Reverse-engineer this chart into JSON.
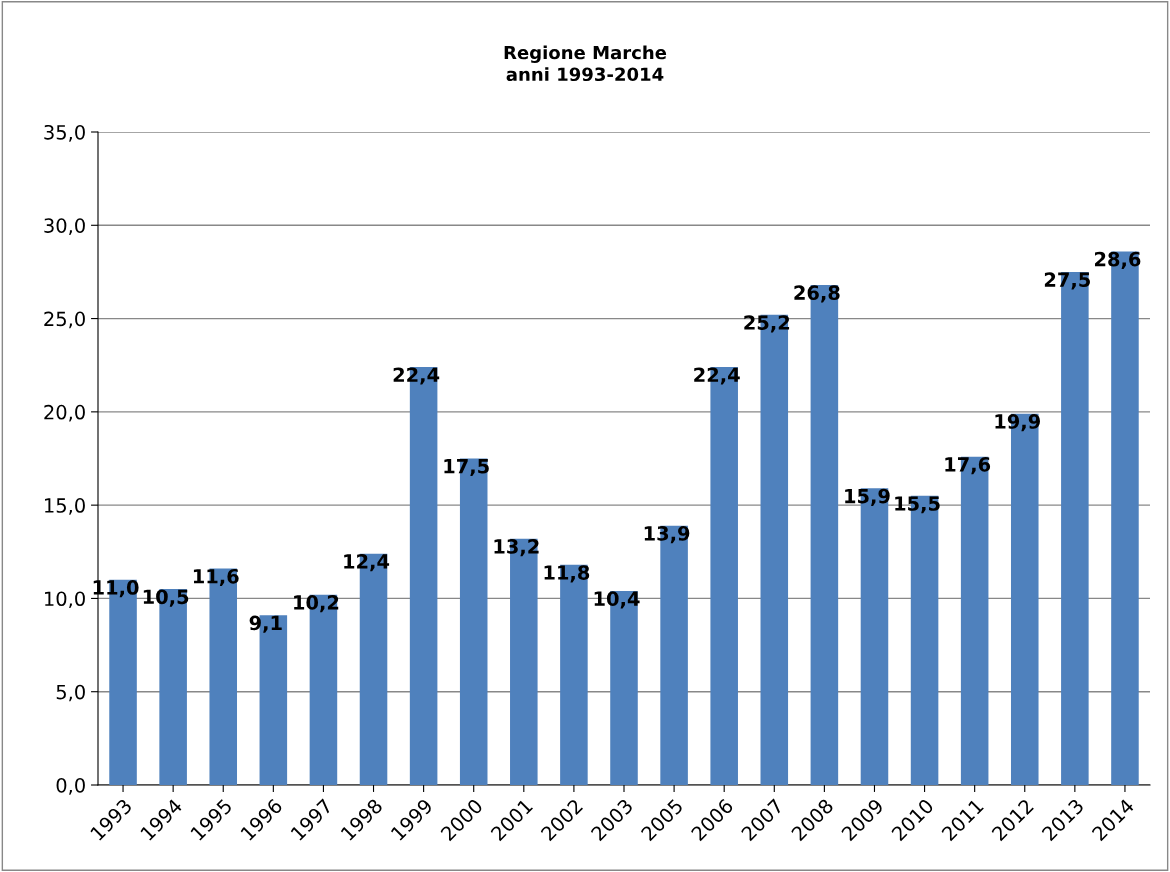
{
  "chart_data": {
    "type": "bar",
    "title": "Regione Marche\nanni 1993-2014",
    "categories": [
      "1993",
      "1994",
      "1995",
      "1996",
      "1997",
      "1998",
      "1999",
      "2000",
      "2001",
      "2002",
      "2003",
      "2005",
      "2006",
      "2007",
      "2008",
      "2009",
      "2010",
      "2011",
      "2012",
      "2013",
      "2014"
    ],
    "values": [
      11.0,
      10.5,
      11.6,
      9.1,
      10.2,
      12.4,
      22.4,
      17.5,
      13.2,
      11.8,
      10.4,
      13.9,
      22.4,
      25.2,
      26.8,
      15.9,
      15.5,
      17.6,
      19.9,
      27.5,
      28.6
    ],
    "value_labels": [
      "11,0",
      "10,5",
      "11,6",
      "9,1",
      "10,2",
      "12,4",
      "22,4",
      "17,5",
      "13,2",
      "11,8",
      "10,4",
      "13,9",
      "22,4",
      "25,2",
      "26,8",
      "15,9",
      "15,5",
      "17,6",
      "19,9",
      "27,5",
      "28,6"
    ],
    "color": "#4f81bd",
    "ylim": [
      0,
      35
    ],
    "yticks": [
      {
        "value": 0,
        "label": "0,0"
      },
      {
        "value": 5,
        "label": "5,0"
      },
      {
        "value": 10,
        "label": "10,0"
      },
      {
        "value": 15,
        "label": "15,0"
      },
      {
        "value": 20,
        "label": "20,0"
      },
      {
        "value": 25,
        "label": "25,0"
      },
      {
        "value": 30,
        "label": "30,0"
      },
      {
        "value": 35,
        "label": "35,0"
      }
    ],
    "grid": "y",
    "legend": false
  }
}
